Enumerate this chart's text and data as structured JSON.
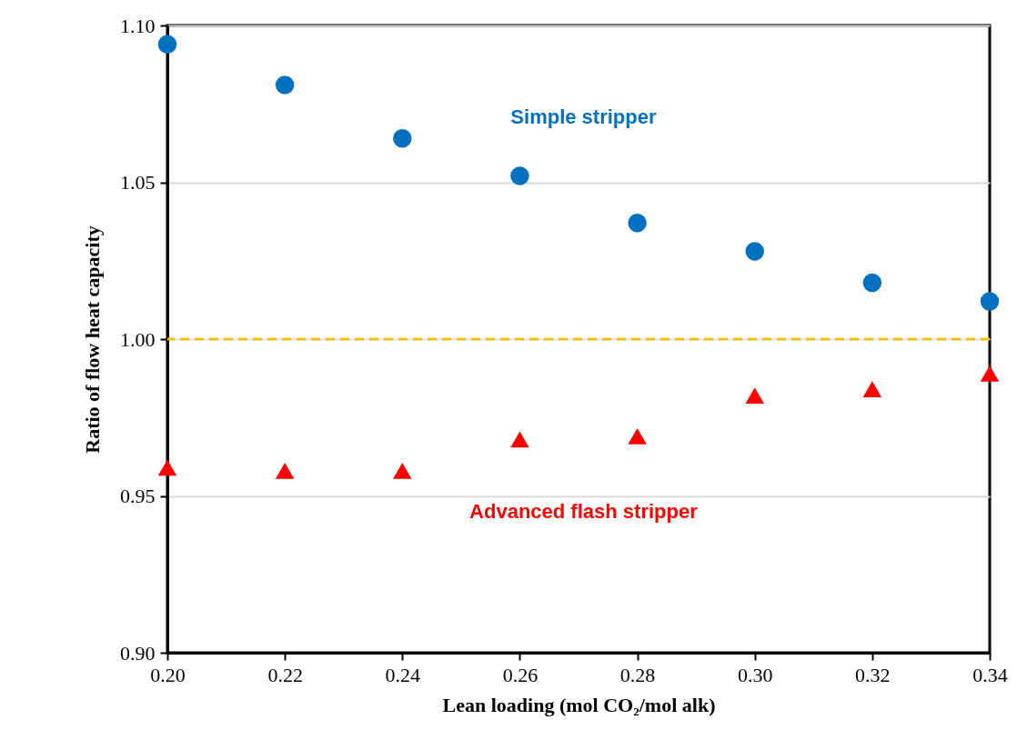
{
  "chart_data": {
    "type": "scatter",
    "xlabel": "Lean loading (mol CO₂/mol alk)",
    "ylabel": "Ratio of flow heat capacity",
    "x": [
      0.2,
      0.22,
      0.24,
      0.26,
      0.28,
      0.3,
      0.32,
      0.34
    ],
    "xlim": [
      0.2,
      0.34
    ],
    "xticks": [
      {
        "value": 0.2,
        "label": "0.20"
      },
      {
        "value": 0.22,
        "label": "0.22"
      },
      {
        "value": 0.24,
        "label": "0.24"
      },
      {
        "value": 0.26,
        "label": "0.26"
      },
      {
        "value": 0.28,
        "label": "0.28"
      },
      {
        "value": 0.3,
        "label": "0.30"
      },
      {
        "value": 0.32,
        "label": "0.32"
      },
      {
        "value": 0.34,
        "label": "0.34"
      }
    ],
    "ylim": [
      0.9,
      1.1
    ],
    "yticks": [
      {
        "value": 0.9,
        "label": "0.90"
      },
      {
        "value": 0.95,
        "label": "0.95"
      },
      {
        "value": 1.0,
        "label": "1.00"
      },
      {
        "value": 1.05,
        "label": "1.05"
      },
      {
        "value": 1.1,
        "label": "1.10"
      }
    ],
    "grid": "y",
    "series": [
      {
        "name": "Simple stripper",
        "color": "#0070c0",
        "marker": "circle",
        "values": [
          1.094,
          1.081,
          1.064,
          1.052,
          1.037,
          1.028,
          1.018,
          1.012
        ]
      },
      {
        "name": "Advanced flash stripper",
        "color": "#ff0000",
        "marker": "triangle",
        "values": [
          0.959,
          0.958,
          0.958,
          0.968,
          0.969,
          0.982,
          0.984,
          0.989
        ]
      }
    ],
    "ref_lines": [
      {
        "axis": "y",
        "value": 1.0,
        "color": "#ffc000",
        "line_style": "dashed"
      }
    ]
  }
}
